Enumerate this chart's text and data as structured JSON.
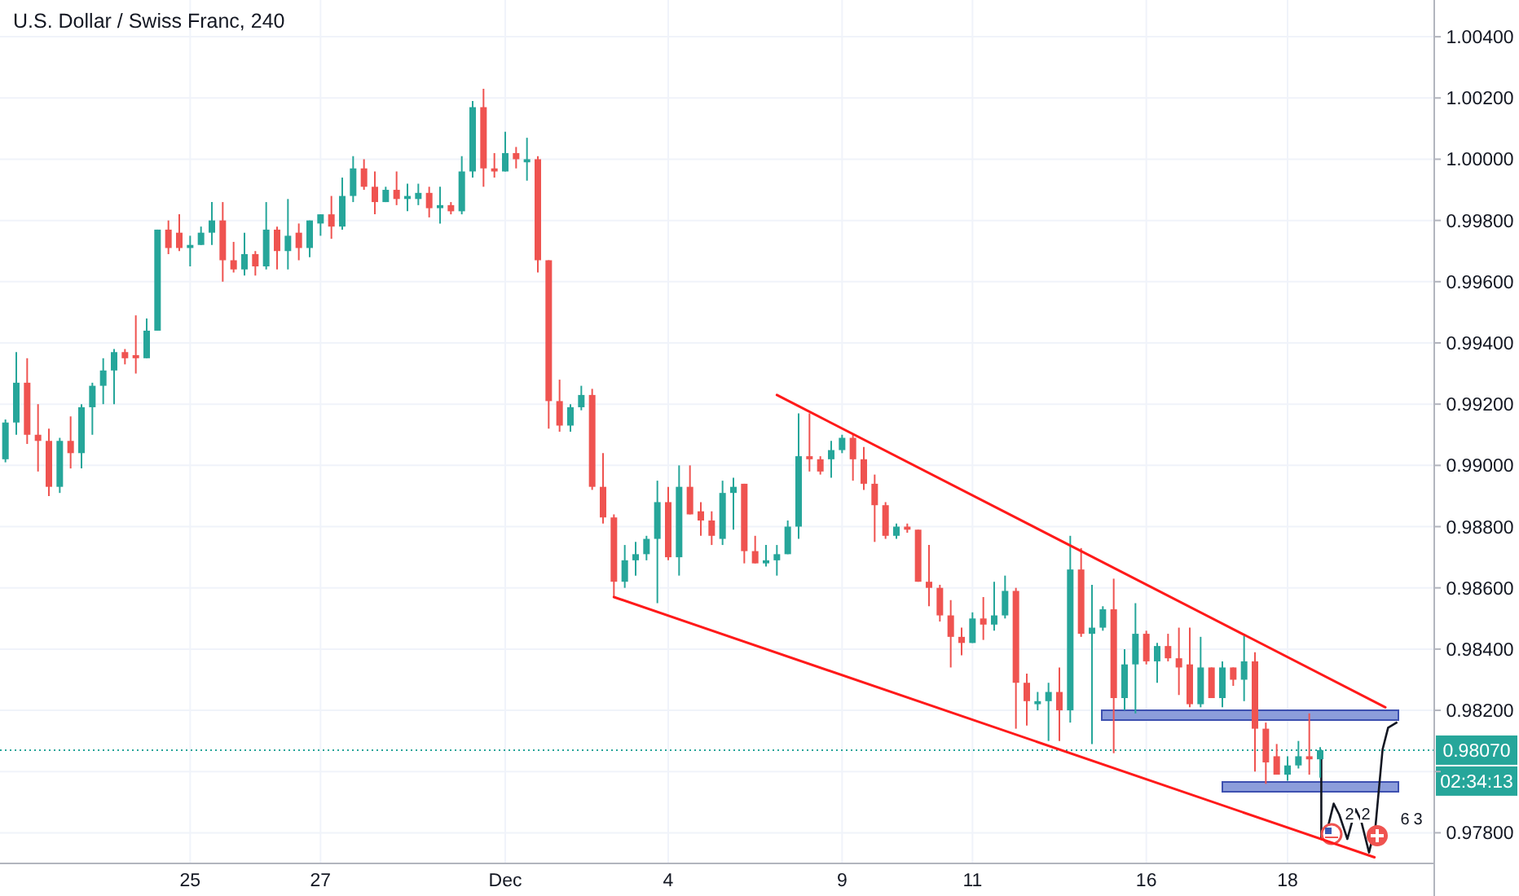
{
  "chart_data": {
    "type": "candlestick",
    "title": "U.S. Dollar / Swiss Franc, 240",
    "categories": [
      null,
      null,
      null,
      null,
      null,
      null,
      null,
      null,
      null,
      null,
      null,
      null,
      null,
      null,
      null,
      null,
      null,
      "25",
      null,
      null,
      null,
      null,
      null,
      null,
      null,
      null,
      null,
      null,
      null,
      "27",
      null,
      null,
      null,
      null,
      null,
      null,
      null,
      null,
      null,
      null,
      null,
      null,
      null,
      null,
      null,
      null,
      "Dec",
      null,
      null,
      null,
      null,
      null,
      null,
      null,
      null,
      null,
      null,
      null,
      null,
      null,
      null,
      "4",
      null,
      null,
      null,
      null,
      null,
      null,
      null,
      null,
      null,
      null,
      null,
      null,
      null,
      null,
      null,
      "9",
      null,
      null,
      null,
      null,
      null,
      null,
      null,
      null,
      null,
      null,
      null,
      "11",
      null,
      null,
      null,
      null,
      null,
      null,
      null,
      null,
      null,
      null,
      null,
      null,
      null,
      null,
      null,
      "16",
      null,
      null,
      null,
      null,
      null,
      null,
      null,
      null,
      null,
      null,
      null,
      null,
      "18",
      null,
      null,
      null,
      null,
      null,
      null,
      null,
      null,
      null,
      null,
      null,
      null,
      null
    ],
    "ohlc": [
      [
        0.9902,
        0.9915,
        0.9901,
        0.9914
      ],
      [
        0.9914,
        0.9937,
        0.991,
        0.9927
      ],
      [
        0.9927,
        0.9935,
        0.9907,
        0.991
      ],
      [
        0.991,
        0.992,
        0.9898,
        0.9908
      ],
      [
        0.9908,
        0.9912,
        0.989,
        0.9893
      ],
      [
        0.9893,
        0.9909,
        0.9891,
        0.9908
      ],
      [
        0.9908,
        0.9916,
        0.9899,
        0.9904
      ],
      [
        0.9904,
        0.992,
        0.9899,
        0.9919
      ],
      [
        0.9919,
        0.9927,
        0.991,
        0.9926
      ],
      [
        0.9926,
        0.9935,
        0.992,
        0.9931
      ],
      [
        0.9931,
        0.9938,
        0.992,
        0.9937
      ],
      [
        0.9937,
        0.9938,
        0.9933,
        0.9935
      ],
      [
        0.9936,
        0.9949,
        0.993,
        0.9935
      ],
      [
        0.9935,
        0.9948,
        0.9935,
        0.9944
      ],
      [
        0.9944,
        0.9977,
        0.9944,
        0.9977
      ],
      [
        0.9977,
        0.998,
        0.9969,
        0.9971
      ],
      [
        0.9976,
        0.9982,
        0.997,
        0.9971
      ],
      [
        0.9971,
        0.9975,
        0.9965,
        0.9972
      ],
      [
        0.9972,
        0.9978,
        0.9972,
        0.9976
      ],
      [
        0.9976,
        0.9986,
        0.9972,
        0.998
      ],
      [
        0.998,
        0.9986,
        0.996,
        0.9967
      ],
      [
        0.9967,
        0.9973,
        0.9963,
        0.9964
      ],
      [
        0.9964,
        0.9976,
        0.9962,
        0.9969
      ],
      [
        0.9969,
        0.997,
        0.9962,
        0.9965
      ],
      [
        0.9965,
        0.9986,
        0.9964,
        0.9977
      ],
      [
        0.9977,
        0.9978,
        0.9964,
        0.997
      ],
      [
        0.997,
        0.9987,
        0.9964,
        0.9975
      ],
      [
        0.9976,
        0.9979,
        0.9967,
        0.9971
      ],
      [
        0.9971,
        0.998,
        0.9968,
        0.998
      ],
      [
        0.9979,
        0.9982,
        0.9975,
        0.9982
      ],
      [
        0.9982,
        0.9988,
        0.9974,
        0.9978
      ],
      [
        0.9978,
        0.9994,
        0.9977,
        0.9988
      ],
      [
        0.9988,
        1.0001,
        0.9986,
        0.9997
      ],
      [
        0.9997,
        1.0,
        0.999,
        0.9991
      ],
      [
        0.9991,
        0.9996,
        0.9982,
        0.9986
      ],
      [
        0.9986,
        0.9991,
        0.9986,
        0.999
      ],
      [
        0.999,
        0.9996,
        0.9985,
        0.9987
      ],
      [
        0.9987,
        0.9992,
        0.9983,
        0.9988
      ],
      [
        0.9987,
        0.9992,
        0.9985,
        0.9989
      ],
      [
        0.9989,
        0.9991,
        0.9981,
        0.9984
      ],
      [
        0.9984,
        0.9991,
        0.9979,
        0.9985
      ],
      [
        0.9985,
        0.9986,
        0.9982,
        0.9983
      ],
      [
        0.9983,
        1.0001,
        0.9982,
        0.9996
      ],
      [
        0.9996,
        1.0019,
        0.9994,
        1.0017
      ],
      [
        1.0017,
        1.0023,
        0.9991,
        0.9997
      ],
      [
        0.9997,
        1.0002,
        0.9994,
        0.9996
      ],
      [
        0.9996,
        1.0009,
        0.9996,
        1.0002
      ],
      [
        1.0002,
        1.0004,
        0.9997,
        1.0
      ],
      [
        0.9999,
        1.0007,
        0.9993,
        1.0
      ],
      [
        1.0,
        1.0001,
        0.9963,
        0.9967
      ],
      [
        0.9967,
        0.9967,
        0.9912,
        0.9921
      ],
      [
        0.9921,
        0.9928,
        0.9911,
        0.9913
      ],
      [
        0.9913,
        0.992,
        0.9911,
        0.9919
      ],
      [
        0.9919,
        0.9926,
        0.9918,
        0.9923
      ],
      [
        0.9923,
        0.9925,
        0.9892,
        0.9893
      ],
      [
        0.9893,
        0.9904,
        0.9881,
        0.9883
      ],
      [
        0.9883,
        0.9884,
        0.9857,
        0.9862
      ],
      [
        0.9862,
        0.9874,
        0.986,
        0.9869
      ],
      [
        0.9869,
        0.9875,
        0.9864,
        0.9871
      ],
      [
        0.9871,
        0.9877,
        0.9869,
        0.9876
      ],
      [
        0.9876,
        0.9895,
        0.9855,
        0.9888
      ],
      [
        0.9888,
        0.9893,
        0.9869,
        0.987
      ],
      [
        0.987,
        0.99,
        0.9864,
        0.9893
      ],
      [
        0.9893,
        0.99,
        0.9884,
        0.9884
      ],
      [
        0.9885,
        0.9888,
        0.9877,
        0.9882
      ],
      [
        0.9882,
        0.9885,
        0.9874,
        0.9877
      ],
      [
        0.9876,
        0.9895,
        0.9874,
        0.9891
      ],
      [
        0.9891,
        0.9896,
        0.9879,
        0.9893
      ],
      [
        0.9894,
        0.9894,
        0.9868,
        0.9872
      ],
      [
        0.9872,
        0.9877,
        0.9868,
        0.9868
      ],
      [
        0.9868,
        0.9874,
        0.9867,
        0.9869
      ],
      [
        0.9869,
        0.9874,
        0.9864,
        0.9871
      ],
      [
        0.9871,
        0.9882,
        0.9871,
        0.988
      ],
      [
        0.988,
        0.9917,
        0.9876,
        0.9903
      ],
      [
        0.9903,
        0.9917,
        0.9898,
        0.9902
      ],
      [
        0.9902,
        0.9903,
        0.9897,
        0.9898
      ],
      [
        0.9902,
        0.9908,
        0.9896,
        0.9905
      ],
      [
        0.9905,
        0.991,
        0.9904,
        0.9909
      ],
      [
        0.9909,
        0.991,
        0.9895,
        0.9902
      ],
      [
        0.9902,
        0.9906,
        0.9892,
        0.9894
      ],
      [
        0.9894,
        0.9897,
        0.9875,
        0.9887
      ],
      [
        0.9887,
        0.9888,
        0.9876,
        0.9877
      ],
      [
        0.9877,
        0.9881,
        0.9876,
        0.988
      ],
      [
        0.988,
        0.9881,
        0.9878,
        0.9879
      ],
      [
        0.9879,
        0.9879,
        0.9862,
        0.9862
      ],
      [
        0.9862,
        0.9874,
        0.9854,
        0.986
      ],
      [
        0.986,
        0.9861,
        0.9849,
        0.9851
      ],
      [
        0.9851,
        0.9856,
        0.9834,
        0.9844
      ],
      [
        0.9844,
        0.9847,
        0.9838,
        0.9842
      ],
      [
        0.9842,
        0.9852,
        0.9842,
        0.985
      ],
      [
        0.985,
        0.9857,
        0.9843,
        0.9848
      ],
      [
        0.9848,
        0.9862,
        0.9846,
        0.9851
      ],
      [
        0.9851,
        0.9864,
        0.985,
        0.9859
      ],
      [
        0.9859,
        0.986,
        0.9814,
        0.9829
      ],
      [
        0.9829,
        0.9832,
        0.9815,
        0.9823
      ],
      [
        0.9822,
        0.9826,
        0.982,
        0.9823
      ],
      [
        0.9823,
        0.9829,
        0.981,
        0.9826
      ],
      [
        0.9826,
        0.9834,
        0.981,
        0.982
      ],
      [
        0.982,
        0.9877,
        0.9816,
        0.9866
      ],
      [
        0.9866,
        0.9873,
        0.9844,
        0.9845
      ],
      [
        0.9845,
        0.9861,
        0.9809,
        0.9847
      ],
      [
        0.9847,
        0.9854,
        0.9846,
        0.9853
      ],
      [
        0.9853,
        0.9863,
        0.9806,
        0.9824
      ],
      [
        0.9824,
        0.984,
        0.982,
        0.9835
      ],
      [
        0.9835,
        0.9855,
        0.9819,
        0.9845
      ],
      [
        0.9845,
        0.9846,
        0.9835,
        0.9836
      ],
      [
        0.9836,
        0.9842,
        0.9829,
        0.9841
      ],
      [
        0.9841,
        0.9845,
        0.9836,
        0.9837
      ],
      [
        0.9837,
        0.9847,
        0.9825,
        0.9834
      ],
      [
        0.9835,
        0.9847,
        0.9821,
        0.9822
      ],
      [
        0.9822,
        0.9844,
        0.9821,
        0.9834
      ],
      [
        0.9834,
        0.9834,
        0.9824,
        0.9824
      ],
      [
        0.9824,
        0.9836,
        0.9821,
        0.9834
      ],
      [
        0.9834,
        0.9834,
        0.9828,
        0.983
      ],
      [
        0.983,
        0.9845,
        0.9823,
        0.9836
      ],
      [
        0.9836,
        0.9839,
        0.98,
        0.9814
      ],
      [
        0.9814,
        0.9816,
        0.9796,
        0.9803
      ],
      [
        0.9805,
        0.9809,
        0.9799,
        0.9799
      ],
      [
        0.9799,
        0.9805,
        0.9797,
        0.9802
      ],
      [
        0.9802,
        0.981,
        0.9801,
        0.9805
      ],
      [
        0.9805,
        0.9819,
        0.9799,
        0.9804
      ],
      [
        0.9804,
        0.9808,
        0.9798,
        0.9807
      ],
      null,
      null,
      null,
      null,
      null,
      null,
      null,
      null,
      null,
      null
    ],
    "series": [
      {
        "type": "line",
        "color": "#ff1a1a",
        "values": [
          null,
          null,
          null,
          null,
          null,
          null,
          null,
          null,
          null,
          null,
          null,
          null,
          null,
          null,
          null,
          null,
          null,
          null,
          null,
          null,
          null,
          null,
          null,
          null,
          null,
          null,
          null,
          null,
          null,
          null,
          null,
          null,
          null,
          null,
          null,
          null,
          null,
          null,
          null,
          null,
          null,
          null,
          null,
          null,
          null,
          null,
          null,
          null,
          null,
          null,
          null,
          null,
          null,
          null,
          null,
          null,
          null,
          null,
          null,
          null,
          null,
          null,
          null,
          null,
          null,
          null,
          null,
          null,
          null,
          null,
          null,
          0.9923,
          null,
          null,
          null,
          null,
          null,
          null,
          null,
          null,
          null,
          null,
          null,
          null,
          null,
          null,
          null,
          null,
          null,
          null,
          null,
          null,
          null,
          null,
          null,
          null,
          null,
          null,
          null,
          null,
          null,
          null,
          null,
          null,
          null,
          null,
          null,
          null,
          null,
          null,
          null,
          null,
          null,
          null,
          null,
          null,
          null,
          null,
          null,
          null,
          null,
          null,
          null,
          null,
          null,
          null,
          null,
          0.9821,
          null,
          null,
          null,
          null
        ]
      },
      {
        "type": "line",
        "color": "#ff1a1a",
        "values": [
          null,
          null,
          null,
          null,
          null,
          null,
          null,
          null,
          null,
          null,
          null,
          null,
          null,
          null,
          null,
          null,
          null,
          null,
          null,
          null,
          null,
          null,
          null,
          null,
          null,
          null,
          null,
          null,
          null,
          null,
          null,
          null,
          null,
          null,
          null,
          null,
          null,
          null,
          null,
          null,
          null,
          null,
          null,
          null,
          null,
          null,
          null,
          null,
          null,
          null,
          null,
          null,
          null,
          null,
          null,
          null,
          0.9857,
          null,
          null,
          null,
          null,
          null,
          null,
          null,
          null,
          null,
          null,
          null,
          null,
          null,
          null,
          null,
          null,
          null,
          null,
          null,
          null,
          null,
          null,
          null,
          null,
          null,
          null,
          null,
          null,
          null,
          null,
          null,
          null,
          null,
          null,
          null,
          null,
          null,
          null,
          null,
          null,
          null,
          null,
          null,
          null,
          null,
          null,
          null,
          null,
          null,
          null,
          null,
          null,
          null,
          null,
          null,
          null,
          null,
          null,
          null,
          null,
          null,
          null,
          null,
          null,
          null,
          null,
          null,
          null,
          null,
          0.9772,
          null,
          null,
          null,
          null,
          null
        ]
      }
    ],
    "ylim": [
      0.977,
      1.0052
    ],
    "yticks": [
      {
        "value": 0.978,
        "label": "0.97800"
      },
      {
        "value": 0.98,
        "label": null
      },
      {
        "value": 0.982,
        "label": "0.98200"
      },
      {
        "value": 0.984,
        "label": "0.98400"
      },
      {
        "value": 0.986,
        "label": "0.98600"
      },
      {
        "value": 0.988,
        "label": "0.98800"
      },
      {
        "value": 0.99,
        "label": "0.99000"
      },
      {
        "value": 0.992,
        "label": "0.99200"
      },
      {
        "value": 0.994,
        "label": "0.99400"
      },
      {
        "value": 0.996,
        "label": "0.99600"
      },
      {
        "value": 0.998,
        "label": "0.99800"
      },
      {
        "value": 1.0,
        "label": "1.00000"
      },
      {
        "value": 1.002,
        "label": "1.00200"
      },
      {
        "value": 1.004,
        "label": "1.00400"
      }
    ],
    "ref_lines": [
      {
        "axis": "y",
        "value": 0.9807,
        "label": "0.98070",
        "color": "#26a69a",
        "line_style": "dotted"
      }
    ],
    "annotations": [
      "02:34:13",
      "2",
      "2",
      "6",
      "3"
    ],
    "grid": true
  }
}
